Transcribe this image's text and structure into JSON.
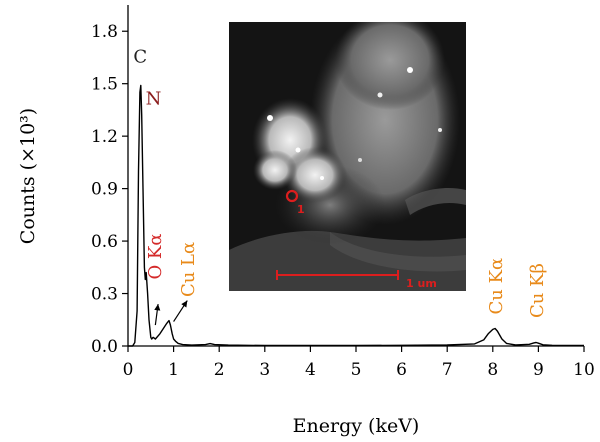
{
  "chart_data": {
    "type": "line",
    "xlabel": "Energy (keV)",
    "ylabel": "Counts (×10³)",
    "xlim": [
      0,
      10
    ],
    "ylim": [
      0,
      1.95
    ],
    "xticks": [
      0,
      1,
      2,
      3,
      4,
      5,
      6,
      7,
      8,
      9,
      10
    ],
    "yticks": [
      "0.0",
      "0.3",
      "0.6",
      "0.9",
      "1.2",
      "1.5",
      "1.8"
    ],
    "grid": false,
    "series": [
      {
        "color": "#000000",
        "x": [
          0.0,
          0.1,
          0.15,
          0.2,
          0.23,
          0.26,
          0.28,
          0.3,
          0.33,
          0.36,
          0.38,
          0.4,
          0.43,
          0.46,
          0.5,
          0.52,
          0.55,
          0.6,
          0.7,
          0.8,
          0.85,
          0.9,
          0.93,
          0.97,
          1.0,
          1.05,
          1.1,
          1.2,
          1.4,
          1.7,
          1.8,
          1.9,
          2.2,
          3.0,
          4.0,
          5.0,
          6.0,
          7.0,
          7.6,
          7.8,
          7.9,
          8.0,
          8.05,
          8.1,
          8.2,
          8.3,
          8.5,
          8.8,
          8.9,
          8.95,
          9.0,
          9.1,
          9.3,
          10.0
        ],
        "y": [
          0.0,
          0.0,
          0.02,
          0.2,
          1.0,
          1.45,
          1.49,
          1.32,
          0.9,
          0.45,
          0.38,
          0.42,
          0.3,
          0.15,
          0.05,
          0.04,
          0.05,
          0.04,
          0.07,
          0.11,
          0.13,
          0.145,
          0.12,
          0.07,
          0.04,
          0.025,
          0.015,
          0.008,
          0.005,
          0.008,
          0.014,
          0.008,
          0.005,
          0.003,
          0.003,
          0.003,
          0.004,
          0.006,
          0.012,
          0.035,
          0.07,
          0.095,
          0.1,
          0.085,
          0.04,
          0.015,
          0.006,
          0.01,
          0.018,
          0.02,
          0.016,
          0.007,
          0.004,
          0.003
        ]
      }
    ],
    "annotations": [
      {
        "text": "C",
        "x": 0.27,
        "y": 1.62,
        "color": "#222222",
        "anchor": "middle"
      },
      {
        "text": "N",
        "x": 0.56,
        "y": 1.38,
        "color": "#8b1c1c",
        "anchor": "middle"
      },
      {
        "text": "O Kα",
        "x": 0.72,
        "y": 0.38,
        "rotate": -90,
        "color": "#d42a2a",
        "anchor": "start"
      },
      {
        "text": "Cu Lα",
        "x": 1.45,
        "y": 0.28,
        "rotate": -90,
        "color": "#e88a1a",
        "anchor": "start"
      },
      {
        "text": "Cu Kα",
        "x": 8.2,
        "y": 0.18,
        "rotate": -90,
        "color": "#e88a1a",
        "anchor": "start"
      },
      {
        "text": "Cu Kβ",
        "x": 9.1,
        "y": 0.16,
        "rotate": -90,
        "color": "#e88a1a",
        "anchor": "start"
      }
    ],
    "arrows": [
      {
        "from": [
          0.6,
          0.12
        ],
        "to": [
          0.66,
          0.24
        ]
      },
      {
        "from": [
          1.0,
          0.14
        ],
        "to": [
          1.3,
          0.26
        ]
      }
    ],
    "inset": {
      "description": "STEM dark-field micrograph of a bright particle cluster",
      "scale_bar_label": "1 um",
      "scale_bar_color": "#dc1e1e",
      "marker_label": "1",
      "marker_color": "#dc1e1e"
    }
  }
}
